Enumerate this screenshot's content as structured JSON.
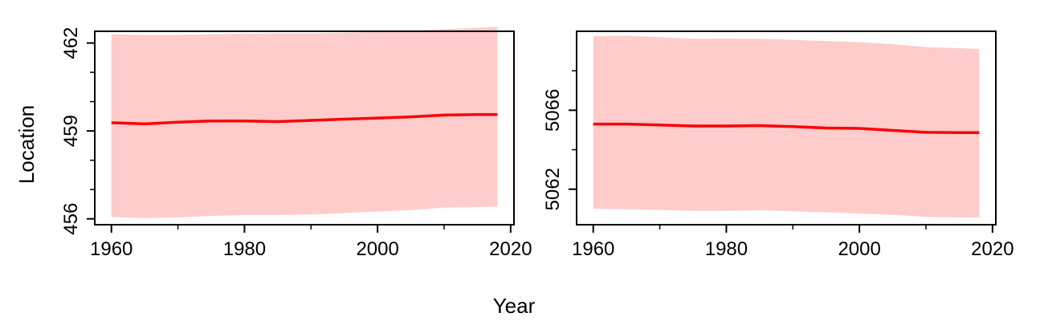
{
  "figure": {
    "ylabel": "Location",
    "xlabel": "Year"
  },
  "chart_data": [
    {
      "type": "area",
      "title": "",
      "xlabel": "Year",
      "ylabel": "Location",
      "xlim": [
        1957.5,
        2020.5
      ],
      "ylim": [
        455.8,
        462.4
      ],
      "xticks": [
        1960,
        1980,
        2000,
        2020
      ],
      "xminor": [
        1970,
        1990,
        2010
      ],
      "yticks": [
        456,
        459,
        462
      ],
      "yminor": [
        457,
        458,
        460,
        461
      ],
      "grid": false,
      "series": [
        {
          "role": "estimate",
          "color": "#ff0000",
          "x": [
            1960,
            1965,
            1970,
            1975,
            1980,
            1985,
            1990,
            1995,
            2000,
            2005,
            2010,
            2015,
            2018
          ],
          "y": [
            459.28,
            459.24,
            459.3,
            459.34,
            459.34,
            459.32,
            459.36,
            459.4,
            459.44,
            459.48,
            459.54,
            459.56,
            459.56
          ]
        },
        {
          "role": "interval",
          "color": "#ffcccc",
          "x": [
            1960,
            1965,
            1970,
            1975,
            1980,
            1985,
            1990,
            1995,
            2000,
            2005,
            2010,
            2015,
            2018
          ],
          "lower": [
            456.06,
            456.03,
            456.05,
            456.1,
            456.13,
            456.13,
            456.15,
            456.2,
            456.25,
            456.3,
            456.38,
            456.4,
            456.42
          ],
          "upper": [
            462.3,
            462.28,
            462.28,
            462.3,
            462.32,
            462.33,
            462.33,
            462.35,
            462.38,
            462.4,
            462.47,
            462.52,
            462.55
          ]
        }
      ]
    },
    {
      "type": "area",
      "title": "",
      "xlabel": "Year",
      "ylabel": "",
      "xlim": [
        1957.5,
        2020.5
      ],
      "ylim": [
        5060.2,
        5070.0
      ],
      "xticks": [
        1960,
        1980,
        2000,
        2020
      ],
      "xminor": [
        1970,
        1990,
        2010
      ],
      "yticks": [
        5062,
        5066
      ],
      "yminor": [
        5064,
        5068
      ],
      "grid": false,
      "series": [
        {
          "role": "estimate",
          "color": "#ff0000",
          "x": [
            1960,
            1965,
            1970,
            1975,
            1980,
            1985,
            1990,
            1995,
            2000,
            2005,
            2010,
            2015,
            2018
          ],
          "y": [
            5065.3,
            5065.3,
            5065.25,
            5065.2,
            5065.2,
            5065.22,
            5065.17,
            5065.1,
            5065.08,
            5064.98,
            5064.88,
            5064.87,
            5064.87
          ]
        },
        {
          "role": "interval",
          "color": "#ffcccc",
          "x": [
            1960,
            1965,
            1970,
            1975,
            1980,
            1985,
            1990,
            1995,
            2000,
            2005,
            2010,
            2015,
            2018
          ],
          "lower": [
            5061.0,
            5060.99,
            5060.95,
            5060.9,
            5060.9,
            5060.93,
            5060.88,
            5060.83,
            5060.77,
            5060.7,
            5060.6,
            5060.57,
            5060.57
          ],
          "upper": [
            5069.75,
            5069.78,
            5069.7,
            5069.62,
            5069.63,
            5069.62,
            5069.57,
            5069.5,
            5069.45,
            5069.35,
            5069.2,
            5069.15,
            5069.1
          ]
        }
      ]
    }
  ]
}
